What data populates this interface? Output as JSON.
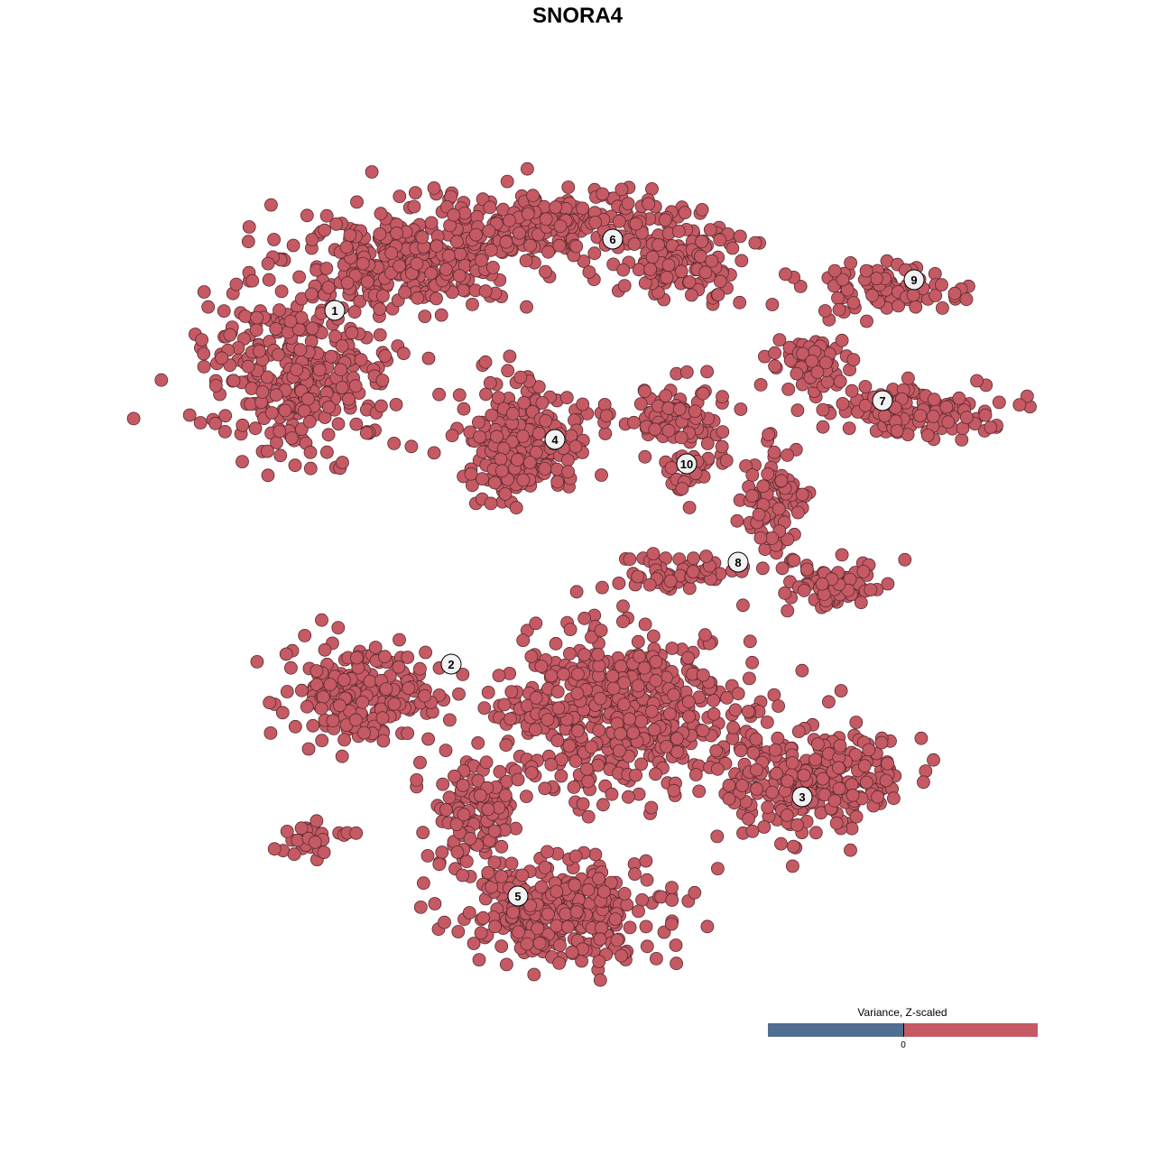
{
  "chart_data": {
    "type": "scatter",
    "title": "SNORA4",
    "xlabel": "",
    "ylabel": "",
    "grid": false,
    "point_color": "#c55a64",
    "point_stroke": "#5a2a2e",
    "clusters": [
      {
        "label": "1"
      },
      {
        "label": "2"
      },
      {
        "label": "3"
      },
      {
        "label": "4"
      },
      {
        "label": "5"
      },
      {
        "label": "6"
      },
      {
        "label": "7"
      },
      {
        "label": "8"
      },
      {
        "label": "9"
      },
      {
        "label": "10"
      }
    ],
    "legend": {
      "title": "Variance, Z-scaled",
      "placement": "bottom-right",
      "tick": "0",
      "low_color": "#506e91",
      "high_color": "#c55a64"
    }
  }
}
